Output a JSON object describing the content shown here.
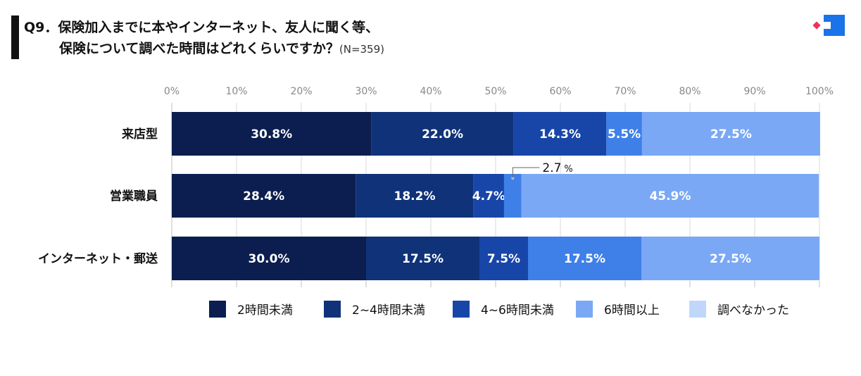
{
  "title": {
    "line1": "Q9．保険加入までに本やインターネット、友人に聞く等、",
    "line2": "保険について調べた時間はどれくらいですか？",
    "note": "(N=359)"
  },
  "logo": {
    "name": "brand-logo-icon",
    "colors": [
      "#e8365d",
      "#1a73e8"
    ]
  },
  "chart_data": {
    "type": "bar",
    "orientation": "horizontal",
    "stacked": true,
    "percent_scale": true,
    "xlim": [
      0,
      100
    ],
    "x_ticks": [
      "0%",
      "10%",
      "20%",
      "30%",
      "40%",
      "50%",
      "60%",
      "70%",
      "80%",
      "90%",
      "100%"
    ],
    "grid": true,
    "categories": [
      "来店型",
      "営業職員",
      "インターネット・郵送"
    ],
    "series": [
      {
        "name": "2時間未満",
        "color": "#0b1e4f",
        "values": [
          30.8,
          28.4,
          30.0
        ],
        "labels": [
          "30.8%",
          "28.4%",
          "30.0%"
        ]
      },
      {
        "name": "2~4時間未満",
        "color": "#0f3279",
        "values": [
          22.0,
          18.2,
          17.5
        ],
        "labels": [
          "22.0%",
          "18.2%",
          "17.5%"
        ]
      },
      {
        "name": "4~6時間未満",
        "color": "#1846a8",
        "values": [
          14.3,
          4.7,
          7.5
        ],
        "labels": [
          "14.3%",
          "4.7%",
          "7.5%"
        ]
      },
      {
        "name": "6時間以上",
        "color": "#3f7fe8",
        "values": [
          5.5,
          2.7,
          17.5
        ],
        "labels": [
          "5.5%",
          "",
          "17.5%"
        ]
      },
      {
        "name": "調べなかった",
        "color": "#7aa8f5",
        "values": [
          27.5,
          45.9,
          27.5
        ],
        "labels": [
          "27.5%",
          "45.9%",
          "27.5%"
        ]
      }
    ],
    "legend": {
      "position": "bottom",
      "items": [
        {
          "label": "2時間未満",
          "color": "#0b1e4f"
        },
        {
          "label": "2~4時間未満",
          "color": "#0f3279"
        },
        {
          "label": "4~6時間未満",
          "color": "#1846a8"
        },
        {
          "label": "6時間以上",
          "color": "#7aa8f5"
        },
        {
          "label": "調べなかった",
          "color": "#c0d7fb"
        }
      ]
    },
    "callout": {
      "category": "営業職員",
      "series": "6時間以上",
      "value": "2.7",
      "unit": "%"
    }
  }
}
